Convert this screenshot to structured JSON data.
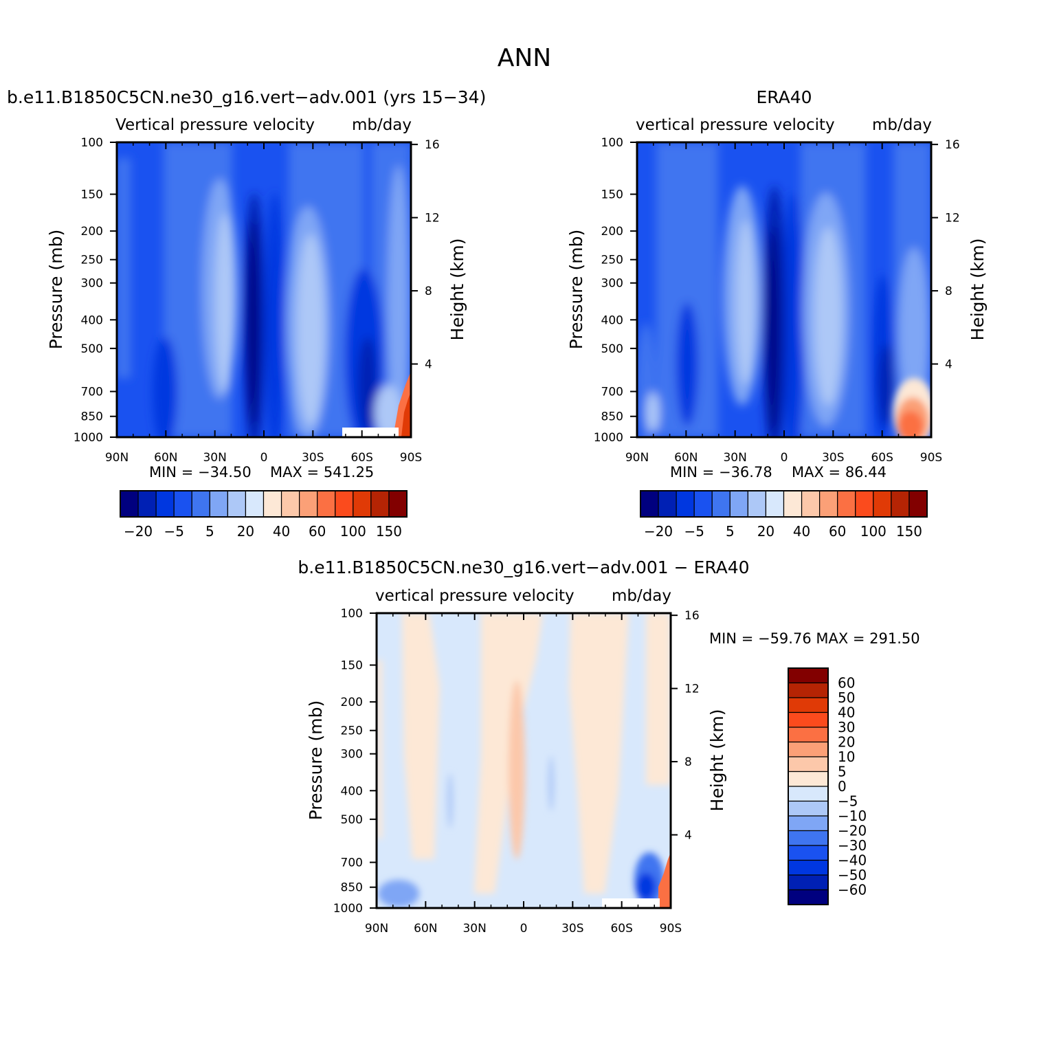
{
  "figure": {
    "title": "ANN",
    "diff_title": "b.e11.B1850C5CN.ne30_g16.vert−adv.001 − ERA40"
  },
  "chart_data": [
    {
      "type": "heatmap",
      "panel": "model",
      "title": "b.e11.B1850C5CN.ne30_g16.vert−adv.001 (yrs 15−34)",
      "subtitle_left": "Vertical pressure velocity",
      "subtitle_right": "mb/day",
      "ylabel": "Pressure (mb)",
      "y2label": "Height (km)",
      "x_ticks": [
        "90N",
        "60N",
        "30N",
        "0",
        "30S",
        "60S",
        "90S"
      ],
      "xlim": [
        90,
        -90
      ],
      "y_ticks": [
        "100",
        "150",
        "200",
        "250",
        "300",
        "400",
        "500",
        "700",
        "850",
        "1000"
      ],
      "ylim": [
        1000,
        100
      ],
      "y_scale": "log",
      "y2_ticks": [
        "4",
        "8",
        "12",
        "16"
      ],
      "min_label": "MIN = −34.50",
      "max_label": "MAX = 541.25",
      "colorbar": {
        "orientation": "horizontal",
        "labels": [
          "−20",
          "−5",
          "5",
          "20",
          "40",
          "60",
          "100",
          "150"
        ]
      }
    },
    {
      "type": "heatmap",
      "panel": "obs",
      "title": "ERA40",
      "subtitle_left": "vertical pressure velocity",
      "subtitle_right": "mb/day",
      "ylabel": "Pressure (mb)",
      "y2label": "Height (km)",
      "x_ticks": [
        "90N",
        "60N",
        "30N",
        "0",
        "30S",
        "60S",
        "90S"
      ],
      "xlim": [
        90,
        -90
      ],
      "y_ticks": [
        "100",
        "150",
        "200",
        "250",
        "300",
        "400",
        "500",
        "700",
        "850",
        "1000"
      ],
      "ylim": [
        1000,
        100
      ],
      "y_scale": "log",
      "y2_ticks": [
        "4",
        "8",
        "12",
        "16"
      ],
      "min_label": "MIN = −36.78",
      "max_label": "MAX = 86.44",
      "colorbar": {
        "orientation": "horizontal",
        "labels": [
          "−20",
          "−5",
          "5",
          "20",
          "40",
          "60",
          "100",
          "150"
        ]
      }
    },
    {
      "type": "heatmap",
      "panel": "diff",
      "subtitle_left": "vertical pressure velocity",
      "subtitle_right": "mb/day",
      "ylabel": "Pressure (mb)",
      "y2label": "Height (km)",
      "x_ticks": [
        "90N",
        "60N",
        "30N",
        "0",
        "30S",
        "60S",
        "90S"
      ],
      "xlim": [
        90,
        -90
      ],
      "y_ticks": [
        "100",
        "150",
        "200",
        "250",
        "300",
        "400",
        "500",
        "700",
        "850",
        "1000"
      ],
      "ylim": [
        1000,
        100
      ],
      "y_scale": "log",
      "y2_ticks": [
        "4",
        "8",
        "12",
        "16"
      ],
      "minmax_label": "MIN = −59.76 MAX = 291.50",
      "colorbar": {
        "orientation": "vertical",
        "labels": [
          "60",
          "50",
          "40",
          "30",
          "20",
          "10",
          "5",
          "0",
          "−5",
          "−10",
          "−20",
          "−30",
          "−40",
          "−50",
          "−60"
        ]
      }
    }
  ],
  "palette": [
    "#00007f",
    "#0020b4",
    "#0037e0",
    "#1a52f0",
    "#3f75f0",
    "#7fa6f5",
    "#adc8f7",
    "#d8e8fc",
    "#fde8d6",
    "#fcc8aa",
    "#fba077",
    "#fb7043",
    "#fb4b1d",
    "#e03a06",
    "#b52404",
    "#820000"
  ]
}
